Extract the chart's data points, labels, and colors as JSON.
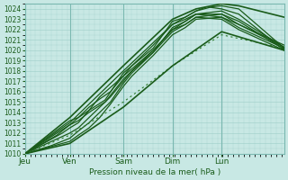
{
  "xlabel": "Pression niveau de la mer( hPa )",
  "ylabel": "",
  "ylim": [
    1010,
    1024.5
  ],
  "xlim": [
    0,
    4.85
  ],
  "yticks": [
    1010,
    1011,
    1012,
    1013,
    1014,
    1015,
    1016,
    1017,
    1018,
    1019,
    1020,
    1021,
    1022,
    1023,
    1024
  ],
  "xtick_positions": [
    0.0,
    0.84,
    1.84,
    2.76,
    3.68
  ],
  "xtick_labels": [
    "Jeu",
    "Ven",
    "Sam",
    "Dim",
    "Lun"
  ],
  "background_color": "#c8e8e4",
  "grid_color": "#9ecec8",
  "line_color": "#1a5c1a",
  "line_color_dashed": "#2d7a2d",
  "vline_color": "#7ab8b0",
  "vlines": [
    0.0,
    0.84,
    1.84,
    2.76,
    3.68
  ],
  "ensemble_lines": [
    {
      "x": [
        0.0,
        0.84,
        1.84,
        2.76,
        3.2,
        3.5,
        3.68,
        4.0,
        4.85
      ],
      "y": [
        1010.0,
        1013.0,
        1018.0,
        1022.5,
        1023.8,
        1024.2,
        1024.3,
        1024.0,
        1020.2
      ]
    },
    {
      "x": [
        0.0,
        0.84,
        1.0,
        1.2,
        1.5,
        1.84,
        2.0,
        2.4,
        2.76,
        3.0,
        3.2,
        3.4,
        3.68,
        4.0,
        4.85
      ],
      "y": [
        1010.0,
        1013.2,
        1013.5,
        1014.2,
        1015.2,
        1017.8,
        1018.5,
        1020.2,
        1022.8,
        1023.2,
        1023.8,
        1024.2,
        1024.0,
        1023.5,
        1020.0
      ]
    },
    {
      "x": [
        0.0,
        0.84,
        1.0,
        1.2,
        1.5,
        1.84,
        2.0,
        2.4,
        2.76,
        3.0,
        3.2,
        3.68,
        4.0,
        4.85
      ],
      "y": [
        1010.0,
        1012.8,
        1013.2,
        1014.0,
        1015.0,
        1017.2,
        1018.0,
        1019.8,
        1022.2,
        1022.8,
        1023.5,
        1023.8,
        1023.0,
        1020.3
      ]
    },
    {
      "x": [
        0.0,
        0.7,
        0.84,
        1.0,
        1.2,
        1.4,
        1.84,
        2.0,
        2.4,
        2.76,
        3.0,
        3.2,
        3.68,
        4.0,
        4.85
      ],
      "y": [
        1010.0,
        1012.0,
        1012.5,
        1013.0,
        1014.2,
        1015.5,
        1017.5,
        1018.2,
        1020.0,
        1022.0,
        1022.5,
        1023.2,
        1023.5,
        1022.8,
        1020.1
      ]
    },
    {
      "x": [
        0.0,
        0.6,
        0.84,
        1.0,
        1.2,
        1.4,
        1.6,
        1.84,
        2.0,
        2.4,
        2.76,
        3.0,
        3.2,
        3.68,
        4.0,
        4.85
      ],
      "y": [
        1010.0,
        1011.8,
        1012.8,
        1013.5,
        1014.5,
        1015.3,
        1016.0,
        1017.5,
        1018.5,
        1020.5,
        1022.5,
        1023.0,
        1023.5,
        1023.2,
        1022.5,
        1020.5
      ]
    },
    {
      "x": [
        0.0,
        0.5,
        0.84,
        1.0,
        1.2,
        1.4,
        1.6,
        1.84,
        2.0,
        2.4,
        2.76,
        3.0,
        3.2,
        3.68,
        4.0,
        4.85
      ],
      "y": [
        1010.0,
        1011.2,
        1012.0,
        1012.5,
        1013.5,
        1014.5,
        1015.5,
        1017.0,
        1018.0,
        1020.0,
        1022.0,
        1022.8,
        1023.5,
        1023.5,
        1022.5,
        1020.3
      ]
    },
    {
      "x": [
        0.0,
        0.5,
        0.84,
        1.0,
        1.2,
        1.4,
        1.6,
        1.84,
        2.0,
        2.4,
        2.76,
        3.0,
        3.2,
        3.68,
        4.0,
        4.85
      ],
      "y": [
        1010.0,
        1010.8,
        1011.5,
        1012.2,
        1013.0,
        1014.0,
        1015.0,
        1016.8,
        1017.8,
        1019.8,
        1021.8,
        1022.5,
        1023.2,
        1023.0,
        1022.0,
        1020.0
      ]
    },
    {
      "x": [
        0.0,
        0.84,
        1.0,
        1.2,
        1.4,
        1.6,
        1.84,
        2.0,
        2.4,
        2.76,
        3.0,
        3.2,
        3.68,
        4.0,
        4.85
      ],
      "y": [
        1010.0,
        1011.2,
        1011.8,
        1012.5,
        1013.5,
        1014.8,
        1016.5,
        1017.5,
        1019.5,
        1021.5,
        1022.2,
        1023.0,
        1023.2,
        1022.2,
        1020.2
      ]
    }
  ],
  "dashed_line": {
    "x": [
      0.0,
      0.84,
      1.84,
      2.76,
      3.68,
      4.85
    ],
    "y": [
      1010.0,
      1011.8,
      1015.0,
      1018.5,
      1021.5,
      1020.2
    ]
  },
  "outer_upper_line": {
    "x": [
      0.0,
      0.84,
      1.84,
      2.76,
      3.2,
      3.68,
      4.0,
      4.85
    ],
    "y": [
      1010.0,
      1013.5,
      1018.5,
      1023.0,
      1024.0,
      1024.5,
      1024.3,
      1023.2
    ]
  },
  "outer_lower_line": {
    "x": [
      0.0,
      0.84,
      1.84,
      2.76,
      3.68,
      4.85
    ],
    "y": [
      1010.0,
      1011.0,
      1014.5,
      1018.5,
      1021.8,
      1020.0
    ]
  }
}
